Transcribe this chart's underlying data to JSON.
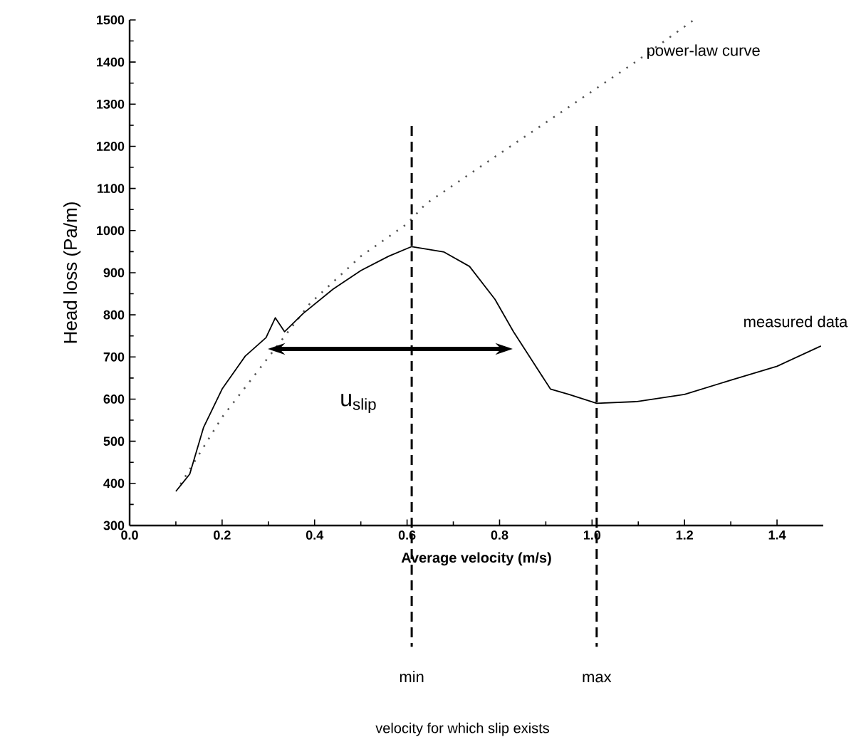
{
  "chart_data": {
    "type": "line",
    "xlabel": "Average velocity (m/s)",
    "ylabel": "Head loss (Pa/m)",
    "xlim": [
      0,
      1.5
    ],
    "ylim": [
      300,
      1500
    ],
    "xticks": [
      {
        "value": 0,
        "label": "0.0"
      },
      0.2,
      0.4,
      0.6,
      0.8,
      {
        "value": 1,
        "label": "1.0"
      },
      1.2,
      1.4
    ],
    "yticks": [
      300,
      400,
      500,
      600,
      700,
      800,
      900,
      1000,
      1100,
      1200,
      1300,
      1400,
      1500
    ],
    "grid": false,
    "series": [
      {
        "name": "power-law curve",
        "color": "#555555",
        "line_style": "dotted",
        "x": [
          0.11,
          0.2,
          0.295,
          0.39,
          0.5,
          0.6,
          0.64,
          0.79,
          0.94,
          1.095,
          1.22
        ],
        "values": [
          398,
          557,
          692,
          827,
          939,
          1016,
          1063,
          1175,
          1286,
          1401,
          1500
        ]
      },
      {
        "name": "measured data",
        "color": "#000000",
        "line_style": "solid",
        "x": [
          0.1,
          0.13,
          0.16,
          0.2,
          0.25,
          0.295,
          0.315,
          0.335,
          0.375,
          0.44,
          0.5,
          0.56,
          0.61,
          0.68,
          0.735,
          0.79,
          0.83,
          0.87,
          0.91,
          0.95,
          1.01,
          1.095,
          1.2,
          1.3,
          1.4,
          1.495
        ],
        "values": [
          381,
          422,
          533,
          624,
          702,
          746,
          793,
          760,
          803,
          861,
          905,
          939,
          962,
          949,
          915,
          837,
          760,
          692,
          624,
          611,
          590,
          594,
          611,
          645,
          678,
          726
        ]
      }
    ],
    "ref_lines": [
      {
        "axis": "x",
        "value": 0.61,
        "label": "min",
        "line_style": "dashed"
      },
      {
        "axis": "x",
        "value": 1.01,
        "label": "max",
        "line_style": "dashed"
      }
    ],
    "annotations": [
      "u$_{slip}$",
      "velocity for which slip exists"
    ]
  }
}
